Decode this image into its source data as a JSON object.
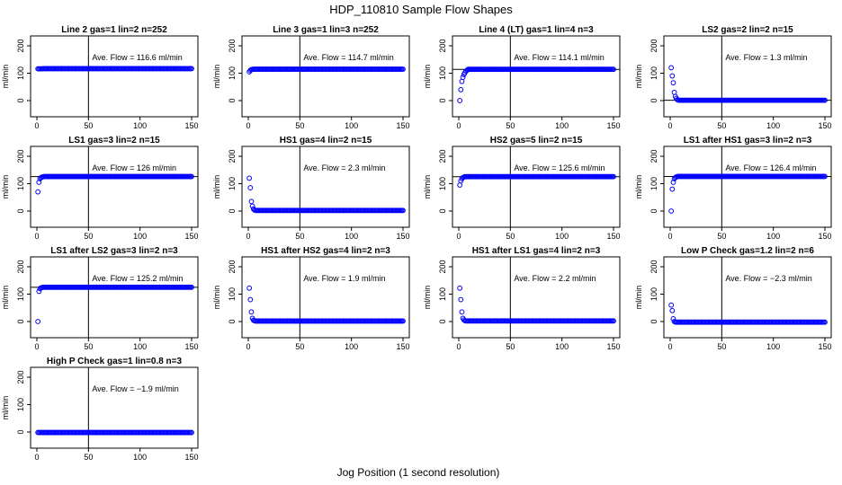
{
  "figure": {
    "title": "HDP_110810  Sample Flow Shapes",
    "xlabel": "Jog Position (1 second resolution)",
    "colors": {
      "points": "#0000ff",
      "axes": "#000000",
      "background": "#ffffff"
    }
  },
  "chart_data": [
    {
      "type": "scatter",
      "title": "Line 2 gas=1 lin=2 n=252",
      "ylabel": "ml/min",
      "xlim": [
        0,
        150
      ],
      "ylim": [
        0,
        200
      ],
      "xticks": [
        "0",
        "50",
        "100",
        "150"
      ],
      "yticks": [
        "0",
        "100",
        "200"
      ],
      "vline": 50,
      "hlines": [],
      "annotation": "Ave. Flow =  116.6  ml/min",
      "series": [
        {
          "shape": "flat",
          "start": [
            1,
            2,
            3,
            4,
            5
          ],
          "start_values": [
            116,
            116,
            116,
            116,
            116
          ],
          "plateau": 116.6,
          "x_end": 150
        }
      ]
    },
    {
      "type": "scatter",
      "title": "Line 3 gas=1 lin=3 n=252",
      "ylabel": "ml/min",
      "xlim": [
        0,
        150
      ],
      "ylim": [
        0,
        200
      ],
      "xticks": [
        "0",
        "50",
        "100",
        "150"
      ],
      "yticks": [
        "0",
        "100",
        "200"
      ],
      "vline": 50,
      "hlines": [],
      "annotation": "Ave. Flow =  114.7  ml/min",
      "series": [
        {
          "shape": "flat",
          "start": [
            1,
            2,
            3,
            4,
            5
          ],
          "start_values": [
            105,
            110,
            113,
            114,
            114.5
          ],
          "plateau": 114.7,
          "x_end": 150
        }
      ]
    },
    {
      "type": "scatter",
      "title": "Line 4 (LT) gas=1 lin=4 n=3",
      "ylabel": "ml/min",
      "xlim": [
        0,
        150
      ],
      "ylim": [
        0,
        200
      ],
      "xticks": [
        "0",
        "50",
        "100",
        "150"
      ],
      "yticks": [
        "0",
        "100",
        "200"
      ],
      "vline": 50,
      "hlines": [
        114.1
      ],
      "annotation": "Ave. Flow =  114.1  ml/min",
      "series": [
        {
          "shape": "rise",
          "start": [
            1,
            2,
            3,
            4,
            5,
            6,
            7,
            8
          ],
          "start_values": [
            0,
            40,
            70,
            85,
            95,
            102,
            108,
            111
          ],
          "plateau": 114.1,
          "x_end": 150
        }
      ]
    },
    {
      "type": "scatter",
      "title": "LS2 gas=2 lin=2 n=15",
      "ylabel": "ml/min",
      "xlim": [
        0,
        150
      ],
      "ylim": [
        0,
        200
      ],
      "xticks": [
        "0",
        "50",
        "100",
        "150"
      ],
      "yticks": [
        "0",
        "100",
        "200"
      ],
      "vline": 50,
      "hlines": [
        1.3
      ],
      "annotation": "Ave. Flow =  1.3  ml/min",
      "series": [
        {
          "shape": "decay",
          "start": [
            1,
            2,
            3,
            4,
            5,
            6,
            7
          ],
          "start_values": [
            120,
            90,
            65,
            30,
            15,
            8,
            3
          ],
          "plateau": 1.3,
          "x_end": 150
        }
      ]
    },
    {
      "type": "scatter",
      "title": "LS1 gas=3 lin=2 n=15",
      "ylabel": "ml/min",
      "xlim": [
        0,
        150
      ],
      "ylim": [
        0,
        200
      ],
      "xticks": [
        "0",
        "50",
        "100",
        "150"
      ],
      "yticks": [
        "0",
        "100",
        "200"
      ],
      "vline": 50,
      "hlines": [
        126
      ],
      "annotation": "Ave. Flow =  126  ml/min",
      "series": [
        {
          "shape": "rise",
          "start": [
            1,
            2,
            3,
            4,
            5,
            6
          ],
          "start_values": [
            70,
            105,
            118,
            122,
            124,
            125
          ],
          "plateau": 126,
          "x_end": 150
        }
      ]
    },
    {
      "type": "scatter",
      "title": "HS1 gas=4 lin=2 n=15",
      "ylabel": "ml/min",
      "xlim": [
        0,
        150
      ],
      "ylim": [
        0,
        200
      ],
      "xticks": [
        "0",
        "50",
        "100",
        "150"
      ],
      "yticks": [
        "0",
        "100",
        "200"
      ],
      "vline": 50,
      "hlines": [],
      "annotation": "Ave. Flow =  2.3  ml/min",
      "series": [
        {
          "shape": "decay",
          "start": [
            1,
            2,
            3,
            4,
            5,
            6
          ],
          "start_values": [
            120,
            85,
            35,
            18,
            8,
            4
          ],
          "plateau": 2.3,
          "x_end": 150
        }
      ]
    },
    {
      "type": "scatter",
      "title": "HS2 gas=5 lin=2 n=15",
      "ylabel": "ml/min",
      "xlim": [
        0,
        150
      ],
      "ylim": [
        0,
        200
      ],
      "xticks": [
        "0",
        "50",
        "100",
        "150"
      ],
      "yticks": [
        "0",
        "100",
        "200"
      ],
      "vline": 50,
      "hlines": [
        125.6
      ],
      "annotation": "Ave. Flow =  125.6  ml/min",
      "series": [
        {
          "shape": "rise",
          "start": [
            1,
            2,
            3,
            4,
            5
          ],
          "start_values": [
            95,
            110,
            118,
            122,
            124
          ],
          "plateau": 125.6,
          "x_end": 150
        }
      ]
    },
    {
      "type": "scatter",
      "title": "LS1 after HS1 gas=3 lin=2 n=3",
      "ylabel": "ml/min",
      "xlim": [
        0,
        150
      ],
      "ylim": [
        0,
        200
      ],
      "xticks": [
        "0",
        "50",
        "100",
        "150"
      ],
      "yticks": [
        "0",
        "100",
        "200"
      ],
      "vline": 50,
      "hlines": [
        126.4
      ],
      "annotation": "Ave. Flow =  126.4  ml/min",
      "series": [
        {
          "shape": "rise",
          "start": [
            1,
            2,
            3,
            4,
            5,
            6,
            7
          ],
          "start_values": [
            0,
            80,
            105,
            118,
            122,
            125,
            126
          ],
          "plateau": 126.4,
          "x_end": 150
        }
      ]
    },
    {
      "type": "scatter",
      "title": "LS1 after LS2 gas=3 lin=2 n=3",
      "ylabel": "ml/min",
      "xlim": [
        0,
        150
      ],
      "ylim": [
        0,
        200
      ],
      "xticks": [
        "0",
        "50",
        "100",
        "150"
      ],
      "yticks": [
        "0",
        "100",
        "200"
      ],
      "vline": 50,
      "hlines": [
        125.2
      ],
      "annotation": "Ave. Flow =  125.2  ml/min",
      "series": [
        {
          "shape": "rise",
          "start": [
            1,
            2,
            3,
            4,
            5,
            6
          ],
          "start_values": [
            0,
            110,
            120,
            123,
            124,
            125
          ],
          "plateau": 125.2,
          "x_end": 150
        }
      ]
    },
    {
      "type": "scatter",
      "title": "HS1 after HS2 gas=4 lin=2 n=3",
      "ylabel": "ml/min",
      "xlim": [
        0,
        150
      ],
      "ylim": [
        0,
        200
      ],
      "xticks": [
        "0",
        "50",
        "100",
        "150"
      ],
      "yticks": [
        "0",
        "100",
        "200"
      ],
      "vline": 50,
      "hlines": [],
      "annotation": "Ave. Flow =  1.9  ml/min",
      "series": [
        {
          "shape": "decay",
          "start": [
            1,
            2,
            3,
            4,
            5,
            6
          ],
          "start_values": [
            122,
            80,
            35,
            12,
            5,
            3
          ],
          "plateau": 1.9,
          "x_end": 150
        }
      ]
    },
    {
      "type": "scatter",
      "title": "HS1 after LS1 gas=4 lin=2 n=3",
      "ylabel": "ml/min",
      "xlim": [
        0,
        150
      ],
      "ylim": [
        0,
        200
      ],
      "xticks": [
        "0",
        "50",
        "100",
        "150"
      ],
      "yticks": [
        "0",
        "100",
        "200"
      ],
      "vline": 50,
      "hlines": [],
      "annotation": "Ave. Flow =  2.2  ml/min",
      "series": [
        {
          "shape": "decay",
          "start": [
            1,
            2,
            3,
            4,
            5,
            6
          ],
          "start_values": [
            122,
            80,
            35,
            12,
            6,
            3
          ],
          "plateau": 2.2,
          "x_end": 150
        }
      ]
    },
    {
      "type": "scatter",
      "title": "Low P Check gas=1.2 lin=2 n=6",
      "ylabel": "ml/min",
      "xlim": [
        0,
        150
      ],
      "ylim": [
        0,
        200
      ],
      "xticks": [
        "0",
        "50",
        "100",
        "150"
      ],
      "yticks": [
        "0",
        "100",
        "200"
      ],
      "vline": 50,
      "hlines": [],
      "annotation": "Ave. Flow =  −2.3  ml/min",
      "series": [
        {
          "shape": "decay",
          "start": [
            1,
            2,
            3,
            4,
            5
          ],
          "start_values": [
            60,
            40,
            10,
            0,
            -2
          ],
          "plateau": -2.3,
          "x_end": 150
        }
      ]
    },
    {
      "type": "scatter",
      "title": "High P Check gas=1 lin=0.8 n=3",
      "ylabel": "ml/min",
      "xlim": [
        0,
        150
      ],
      "ylim": [
        0,
        200
      ],
      "xticks": [
        "0",
        "50",
        "100",
        "150"
      ],
      "yticks": [
        "0",
        "100",
        "200"
      ],
      "vline": 50,
      "hlines": [],
      "annotation": "Ave. Flow =  −1.9  ml/min",
      "series": [
        {
          "shape": "flat",
          "start": [
            1,
            2,
            3
          ],
          "start_values": [
            -1.9,
            -1.9,
            -1.9
          ],
          "plateau": -1.9,
          "x_end": 150
        }
      ]
    }
  ]
}
